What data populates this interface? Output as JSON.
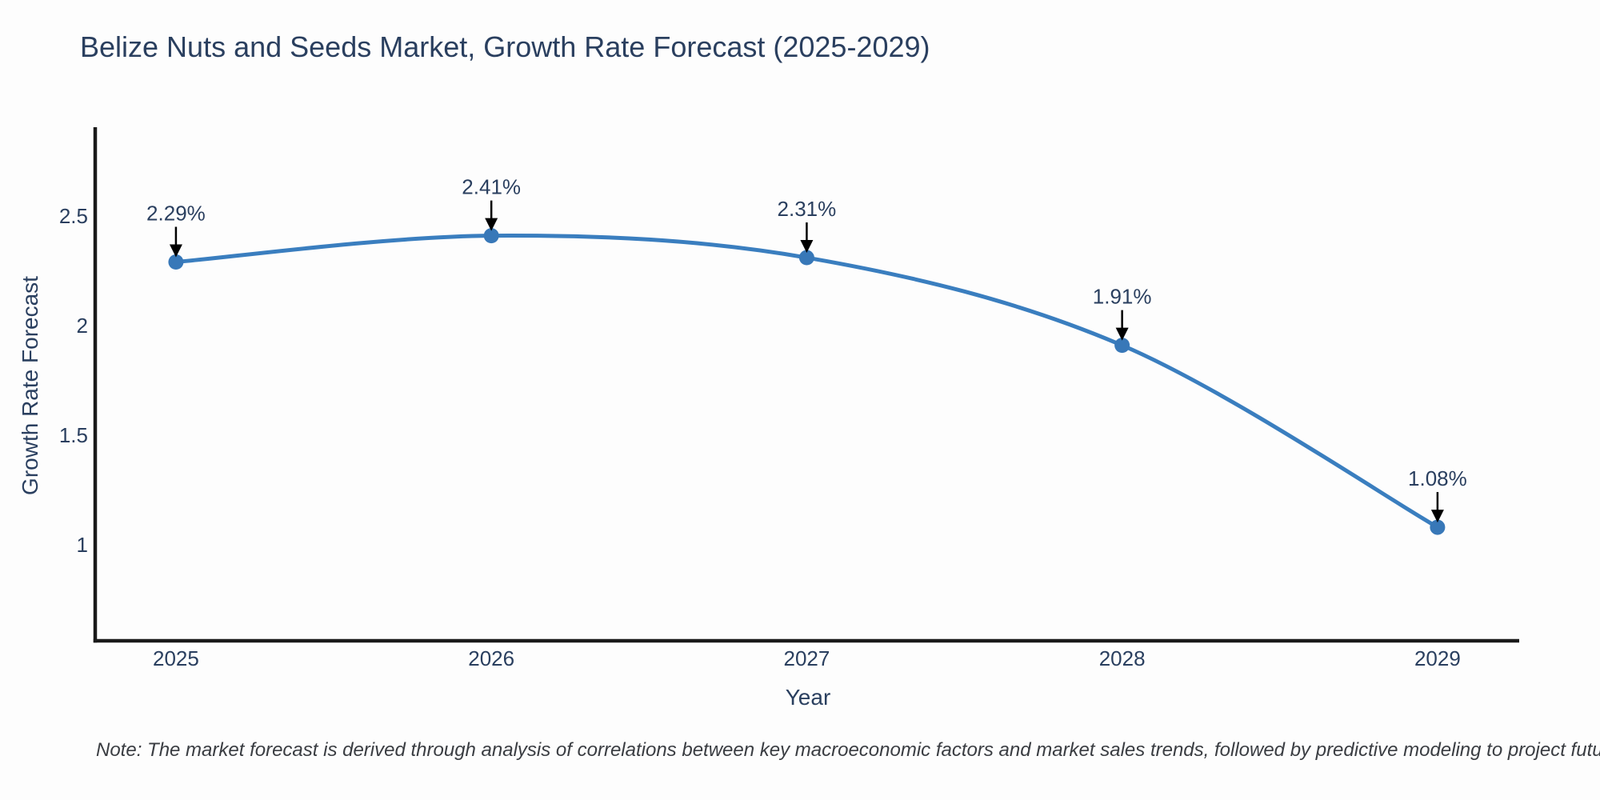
{
  "chart_data": {
    "type": "line",
    "title": "Belize Nuts and Seeds Market, Growth Rate Forecast (2025-2029)",
    "xlabel": "Year",
    "ylabel": "Growth Rate Forecast",
    "categories": [
      2025,
      2026,
      2027,
      2028,
      2029
    ],
    "values": [
      2.29,
      2.41,
      2.31,
      1.91,
      1.08
    ],
    "point_labels": [
      "2.29%",
      "2.41%",
      "2.31%",
      "1.91%",
      "1.08%"
    ],
    "x_tick_labels": [
      "2025",
      "2026",
      "2027",
      "2028",
      "2029"
    ],
    "y_ticks": [
      1,
      1.5,
      2,
      2.5
    ],
    "y_tick_labels": [
      "1",
      "1.5",
      "2",
      "2.5"
    ],
    "xlim": [
      2024.744,
      2029.259
    ],
    "ylim": [
      0.562,
      2.905
    ],
    "grid": false,
    "legend_position": "none",
    "line_shape": "spline",
    "colors": {
      "line": "#3a7ebf",
      "marker": "#3878b8",
      "axis": "#1a1a1a",
      "text": "#2a3f5f",
      "annotation_arrow": "#000000",
      "background": "#fdfdfd"
    }
  },
  "note": "Note: The market forecast is derived through analysis of correlations between key macroeconomic factors and market sales trends, followed by predictive modeling to project future sales"
}
